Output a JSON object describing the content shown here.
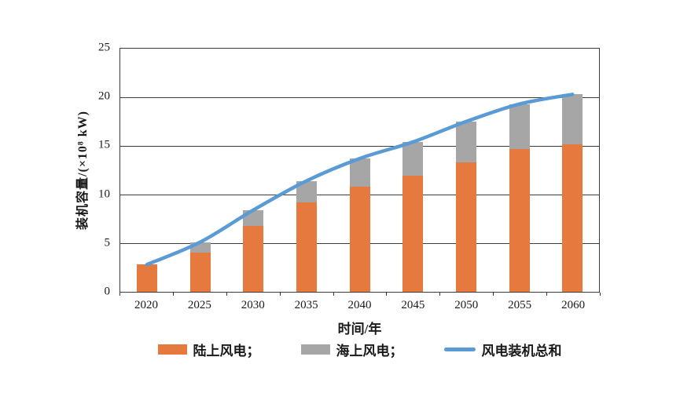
{
  "chart_data": {
    "type": "bar",
    "subtype": "stacked-bar-with-line",
    "categories": [
      "2020",
      "2025",
      "2030",
      "2035",
      "2040",
      "2045",
      "2050",
      "2055",
      "2060"
    ],
    "series": [
      {
        "name": "陆上风电",
        "type": "bar",
        "color": "#E5793E",
        "values": [
          2.8,
          4.0,
          6.8,
          9.2,
          10.8,
          11.9,
          13.3,
          14.7,
          15.2
        ]
      },
      {
        "name": "海上风电",
        "type": "bar",
        "color": "#A6A6A6",
        "values": [
          0,
          1.1,
          1.6,
          2.2,
          2.9,
          3.5,
          4.2,
          4.6,
          5.1
        ]
      },
      {
        "name": "风电装机总和",
        "type": "line",
        "color": "#5B9BD5",
        "values": [
          2.8,
          5.1,
          8.4,
          11.4,
          13.7,
          15.4,
          17.5,
          19.3,
          20.3
        ]
      }
    ],
    "stacked": true,
    "title": "",
    "xlabel": "时间/年",
    "ylabel": "装机容量/(×10⁸ kW)",
    "ylim": [
      0,
      25
    ],
    "yticks": [
      0,
      5,
      10,
      15,
      20,
      25
    ],
    "grid": "horizontal",
    "legend_position": "bottom",
    "legend_labels": [
      "陆上风电；",
      "海上风电；",
      "风电装机总和"
    ],
    "axis_color": "#3C3C3C"
  }
}
